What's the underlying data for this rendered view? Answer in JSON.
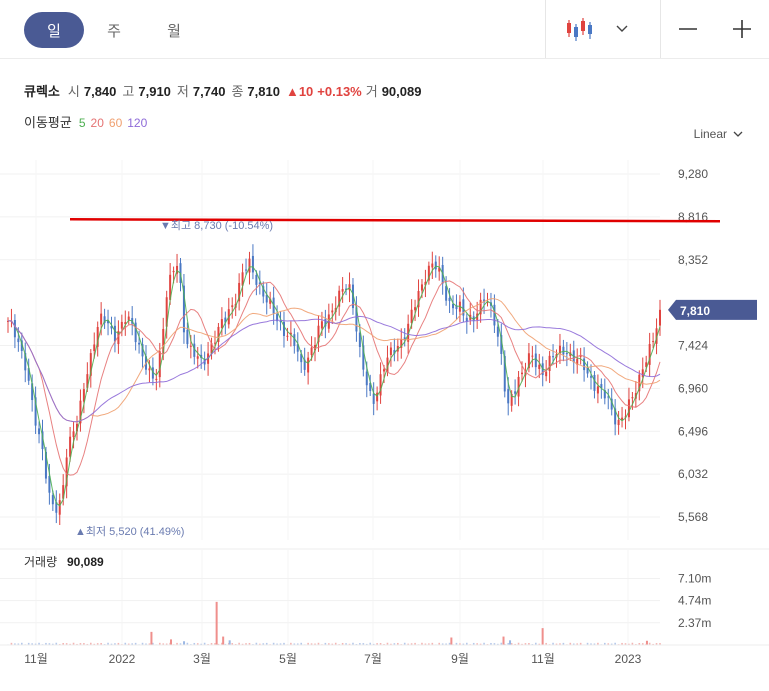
{
  "period_tabs": [
    "일",
    "주",
    "월"
  ],
  "active_tab": 0,
  "icons": [
    "candlestick-chart-icon",
    "chevron-down-icon",
    "minus-icon",
    "plus-icon"
  ],
  "quote": {
    "name": "큐렉소",
    "open_label": "시",
    "open": "7,840",
    "high_label": "고",
    "high": "7,910",
    "low_label": "저",
    "low": "7,740",
    "close_label": "종",
    "close": "7,810",
    "change": "▲10",
    "change_pct": "+0.13%",
    "volume_label": "거",
    "volume": "90,089"
  },
  "moving_average": {
    "label": "이동평균",
    "periods": [
      "5",
      "20",
      "60",
      "120"
    ],
    "colors": [
      "#4caf50",
      "#e57373",
      "#f0a070",
      "#8e6bd8"
    ]
  },
  "scale_label": "Linear",
  "colors": {
    "up": "#e0433f",
    "down": "#4a78c4",
    "accent": "#4a5a94",
    "reference_line": "#e00000"
  },
  "chart_data": {
    "type": "candlestick",
    "y_ticks": [
      9280,
      8816,
      8352,
      7424,
      6960,
      6496,
      6032,
      5568
    ],
    "y_tick_labels": [
      "9,280",
      "8,816",
      "8,352",
      "7,424",
      "6,960",
      "6,496",
      "6,032",
      "5,568"
    ],
    "ylim": [
      5400,
      9500
    ],
    "x_tick_labels": [
      "11월",
      "2022",
      "3월",
      "5월",
      "7월",
      "9월",
      "11월",
      "2023"
    ],
    "current_price": 7810,
    "current_price_label": "7,810",
    "high_annotation": {
      "price": 8730,
      "label": "▼최고 8,730 (-10.54%)"
    },
    "low_annotation": {
      "price": 5520,
      "label": "▲최저 5,520 (41.49%)"
    },
    "reference_line": 8790,
    "series_shape": {
      "close": [
        7650,
        7600,
        7450,
        7200,
        6800,
        6500,
        6300,
        5800,
        5600,
        5700,
        6300,
        6500,
        6600,
        7000,
        7300,
        7600,
        7700,
        7650,
        7550,
        7600,
        7700,
        7650,
        7500,
        7300,
        7100,
        7000,
        7400,
        8000,
        8200,
        8300,
        7600,
        7400,
        7300,
        7200,
        7350,
        7500,
        7600,
        7700,
        7850,
        8000,
        8200,
        8300,
        8200,
        8050,
        7900,
        7800,
        7700,
        7600,
        7500,
        7400,
        7200,
        7300,
        7400,
        7600,
        7700,
        7800,
        7900,
        8000,
        8100,
        7800,
        7300,
        7000,
        6800,
        7000,
        7200,
        7300,
        7400,
        7500,
        7600,
        7800,
        8000,
        8200,
        8300,
        8250,
        8100,
        7900,
        7850,
        7800,
        7700,
        7750,
        7800,
        7900,
        7850,
        7700,
        7300,
        6700,
        6900,
        7100,
        7200,
        7300,
        7200,
        7150,
        7250,
        7300,
        7350,
        7400,
        7300,
        7250,
        7200,
        7100,
        7000,
        6900,
        6850,
        6700,
        6600,
        6650,
        6800,
        7000,
        7200,
        7300,
        7500,
        7810
      ]
    },
    "volume": {
      "label": "거래량",
      "value": "90,089",
      "tick_labels": [
        "7.10m",
        "4.74m",
        "2.37m"
      ],
      "ylim": [
        0,
        8000000
      ],
      "spikes": [
        {
          "pos": 0.22,
          "value": 1400000
        },
        {
          "pos": 0.25,
          "value": 600000
        },
        {
          "pos": 0.27,
          "value": 400000
        },
        {
          "pos": 0.32,
          "value": 4600000
        },
        {
          "pos": 0.33,
          "value": 900000
        },
        {
          "pos": 0.34,
          "value": 500000
        },
        {
          "pos": 0.68,
          "value": 800000
        },
        {
          "pos": 0.76,
          "value": 900000
        },
        {
          "pos": 0.77,
          "value": 500000
        },
        {
          "pos": 0.82,
          "value": 1800000
        },
        {
          "pos": 0.98,
          "value": 450000
        }
      ]
    }
  }
}
